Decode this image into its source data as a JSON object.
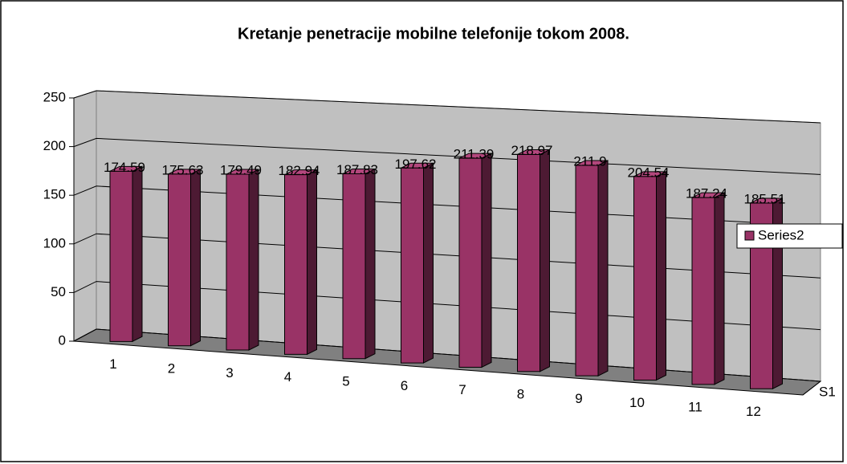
{
  "chart_data": {
    "type": "bar3d",
    "title": "Kretanje penetracije mobilne telefonije tokom 2008.",
    "categories": [
      "1",
      "2",
      "3",
      "4",
      "5",
      "6",
      "7",
      "8",
      "9",
      "10",
      "11",
      "12"
    ],
    "depth_categories": [
      "S1"
    ],
    "series": [
      {
        "name": "Series2",
        "color": "#993366",
        "values": [
          174.59,
          175.63,
          179.49,
          182.94,
          187.83,
          197.62,
          211.39,
          218.97,
          211.9,
          204.54,
          187.24,
          185.51
        ]
      }
    ],
    "ylim": [
      0,
      250
    ],
    "yticks": [
      0,
      50,
      100,
      150,
      200,
      250
    ],
    "grid": true,
    "legend": "right"
  }
}
